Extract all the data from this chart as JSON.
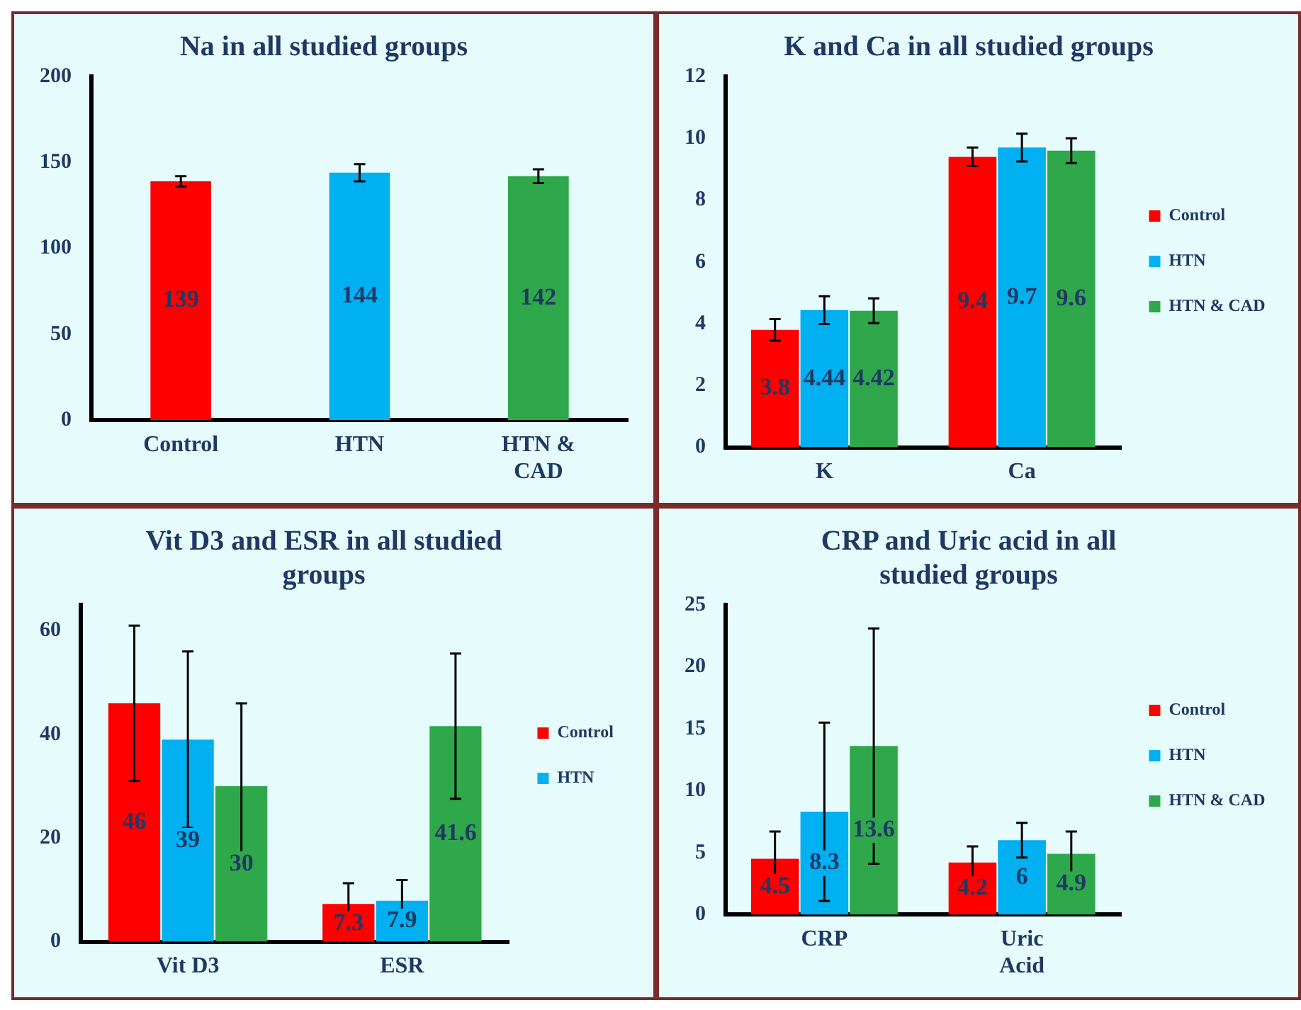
{
  "chart_data": [
    {
      "type": "bar",
      "title": "Na in all studied groups",
      "categories": [
        "Control",
        "HTN",
        "HTN & CAD"
      ],
      "values": [
        139,
        144,
        142
      ],
      "colors": [
        "#ff0000",
        "#00b0f0",
        "#2ea84a"
      ],
      "errors": [
        3,
        5,
        4
      ],
      "ylim": [
        0,
        200
      ],
      "yticks": [
        0,
        50,
        100,
        150,
        200
      ],
      "data_labels": true
    },
    {
      "type": "bar",
      "title": "K and Ca in all studied groups",
      "categories": [
        "K",
        "Ca"
      ],
      "series": [
        {
          "name": "Control",
          "color": "#ff0000",
          "values": [
            3.8,
            9.4
          ],
          "errors": [
            0.35,
            0.3
          ]
        },
        {
          "name": "HTN",
          "color": "#00b0f0",
          "values": [
            4.44,
            9.7
          ],
          "errors": [
            0.45,
            0.45
          ]
        },
        {
          "name": "HTN & CAD",
          "color": "#2ea84a",
          "values": [
            4.42,
            9.6
          ],
          "errors": [
            0.4,
            0.4
          ]
        }
      ],
      "ylim": [
        0,
        12
      ],
      "yticks": [
        0,
        2,
        4,
        6,
        8,
        10,
        12
      ],
      "legend": "right",
      "data_labels": true
    },
    {
      "type": "bar",
      "title": "Vit D3 and ESR in all studied groups",
      "categories": [
        "Vit D3",
        "ESR"
      ],
      "series": [
        {
          "name": "Control",
          "color": "#ff0000",
          "values": [
            46,
            7.3
          ],
          "errors": [
            15,
            4
          ]
        },
        {
          "name": "HTN",
          "color": "#00b0f0",
          "values": [
            39,
            7.9
          ],
          "errors": [
            17,
            4
          ]
        },
        {
          "color": "#2ea84a",
          "values": [
            30,
            41.6
          ],
          "errors": [
            16,
            14
          ]
        }
      ],
      "ylim": [
        0,
        65
      ],
      "yticks": [
        0,
        20,
        40,
        60
      ],
      "legend": "right",
      "data_labels": true
    },
    {
      "type": "bar",
      "title": "CRP and Uric acid in all studied groups",
      "categories": [
        "CRP",
        "Uric Acid"
      ],
      "series": [
        {
          "name": "Control",
          "color": "#ff0000",
          "values": [
            4.5,
            4.2
          ],
          "errors": [
            2.2,
            1.3
          ]
        },
        {
          "name": "HTN",
          "color": "#00b0f0",
          "values": [
            8.3,
            6
          ],
          "errors": [
            7.2,
            1.4
          ]
        },
        {
          "name": "HTN & CAD",
          "color": "#2ea84a",
          "values": [
            13.6,
            4.9
          ],
          "errors": [
            9.5,
            1.8
          ]
        }
      ],
      "ylim": [
        0,
        25
      ],
      "yticks": [
        0,
        5,
        10,
        15,
        20,
        25
      ],
      "legend": "right",
      "data_labels": true
    }
  ]
}
